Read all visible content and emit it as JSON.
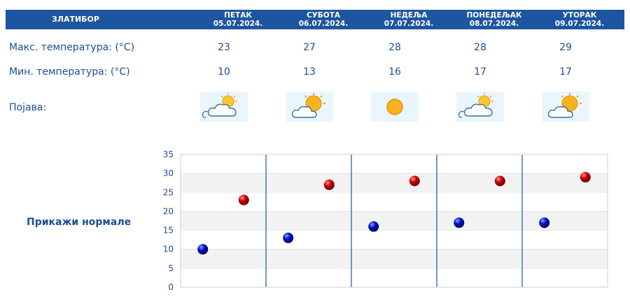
{
  "header": {
    "location": "ЗЛАТИБОР",
    "days": [
      {
        "day": "ПЕТАК",
        "date": "05.07.2024."
      },
      {
        "day": "СУБОТА",
        "date": "06.07.2024."
      },
      {
        "day": "НЕДЕЉА",
        "date": "07.07.2024."
      },
      {
        "day": "ПОНЕДЕЉАК",
        "date": "08.07.2024."
      },
      {
        "day": "УТОРАК",
        "date": "09.07.2024."
      }
    ]
  },
  "rows": {
    "max_label": "Макс. температура: (°C)",
    "min_label": "Мин. температура: (°C)",
    "phenomenon_label": "Појава:"
  },
  "max_temps": [
    "23",
    "27",
    "28",
    "28",
    "29"
  ],
  "min_temps": [
    "10",
    "13",
    "16",
    "17",
    "17"
  ],
  "icons": [
    "partly-cloudy-icon",
    "sun-behind-cloud-icon",
    "sun-icon",
    "partly-cloudy-icon",
    "sun-behind-cloud-icon"
  ],
  "normals_link": "Прикажи нормале",
  "colors": {
    "header": "#1c55a0",
    "text": "#1d4f91",
    "max_marker": "#d10000",
    "min_marker": "#0010c8",
    "icon_bg": "#eaf6fd"
  },
  "chart_data": {
    "type": "scatter",
    "categories": [
      "05.07.2024.",
      "06.07.2024.",
      "07.07.2024.",
      "08.07.2024.",
      "09.07.2024."
    ],
    "series": [
      {
        "values": [
          10,
          13,
          16,
          17,
          17
        ],
        "color": "#0010c8"
      },
      {
        "values": [
          23,
          27,
          28,
          28,
          29
        ],
        "color": "#d10000"
      }
    ],
    "ylim": [
      0,
      35
    ],
    "yticks": [
      0,
      5,
      10,
      15,
      20,
      25,
      30,
      35
    ],
    "grid": true
  }
}
